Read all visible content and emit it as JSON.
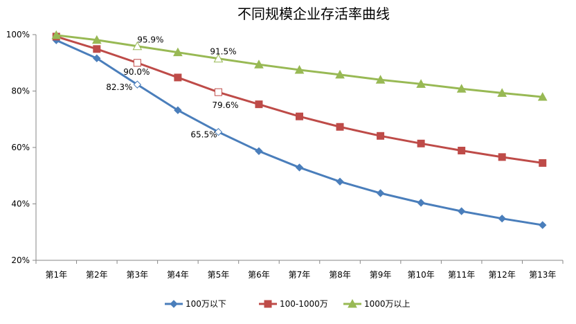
{
  "chart_data": {
    "type": "line",
    "title": "不同规模企业存活率曲线",
    "categories": [
      "第1年",
      "第2年",
      "第3年",
      "第4年",
      "第5年",
      "第6年",
      "第7年",
      "第8年",
      "第9年",
      "第10年",
      "第11年",
      "第12年",
      "第13年"
    ],
    "y_ticks": [
      "20%",
      "40%",
      "60%",
      "80%",
      "100%"
    ],
    "ylim": [
      20,
      100
    ],
    "grid": false,
    "legend_position": "bottom",
    "series": [
      {
        "name": "100万以下",
        "color": "#4a7ebb",
        "marker": "diamond",
        "values": [
          98.0,
          91.6,
          82.3,
          73.2,
          65.5,
          58.7,
          52.9,
          47.9,
          43.8,
          40.4,
          37.4,
          34.8,
          32.5
        ]
      },
      {
        "name": "100-1000万",
        "color": "#be4b48",
        "marker": "square",
        "values": [
          99.3,
          94.9,
          90.0,
          84.8,
          79.6,
          75.3,
          71.0,
          67.3,
          64.1,
          61.4,
          58.9,
          56.6,
          54.5
        ]
      },
      {
        "name": "1000万以上",
        "color": "#98b954",
        "marker": "triangle",
        "values": [
          99.8,
          98.1,
          95.9,
          93.7,
          91.5,
          89.4,
          87.5,
          85.8,
          84.0,
          82.5,
          80.8,
          79.3,
          77.9
        ]
      }
    ],
    "annotations": [
      {
        "series": 0,
        "index": 2,
        "text": "82.3%"
      },
      {
        "series": 0,
        "index": 4,
        "text": "65.5%"
      },
      {
        "series": 1,
        "index": 2,
        "text": "90.0%"
      },
      {
        "series": 1,
        "index": 4,
        "text": "79.6%"
      },
      {
        "series": 2,
        "index": 2,
        "text": "95.9%"
      },
      {
        "series": 2,
        "index": 4,
        "text": "91.5%"
      }
    ]
  }
}
